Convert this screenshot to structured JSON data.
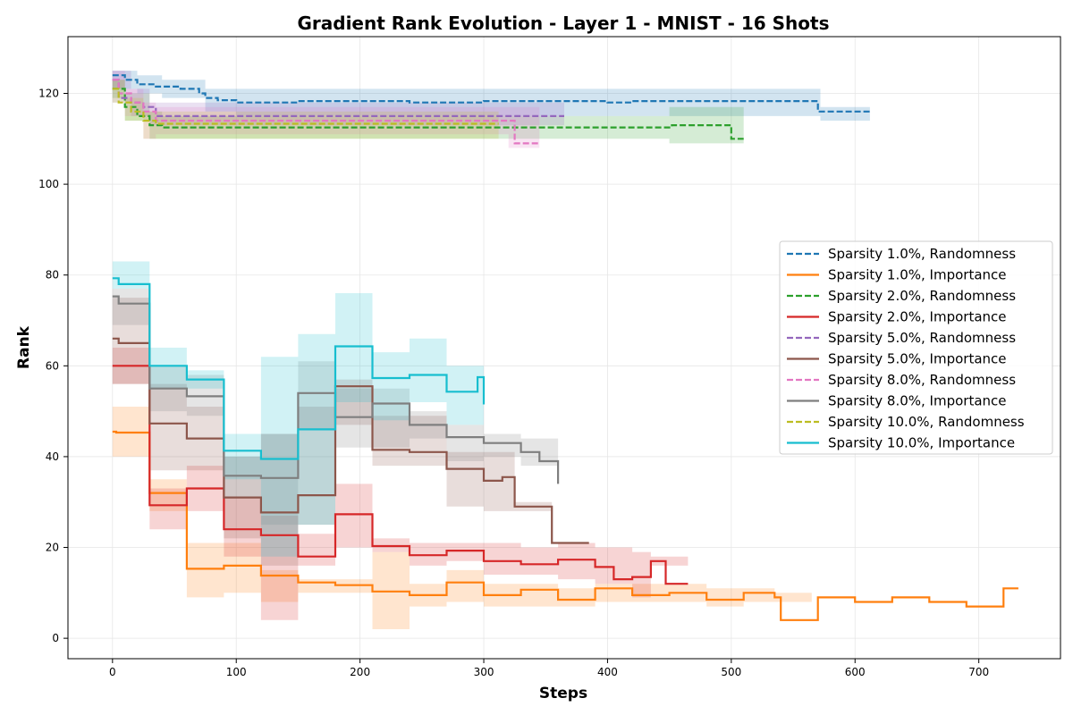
{
  "chart_data": {
    "type": "line",
    "title": "Gradient Rank Evolution - Layer 1 - MNIST - 16 Shots",
    "xlabel": "Steps",
    "ylabel": "Rank",
    "xlim": [
      -36,
      766
    ],
    "ylim": [
      -4.5,
      132.5
    ],
    "xticks": [
      0,
      100,
      200,
      300,
      400,
      500,
      600,
      700
    ],
    "yticks": [
      0,
      20,
      40,
      60,
      80,
      100,
      120
    ],
    "grid": true,
    "legend_position": "center-right",
    "series": [
      {
        "name": "Sparsity 1.0%, Randomness",
        "color": "#1f77b4",
        "dash": true,
        "steps": [
          [
            0,
            124
          ],
          [
            10,
            123
          ],
          [
            20,
            122
          ],
          [
            35,
            121.5
          ],
          [
            55,
            121
          ],
          [
            70,
            120
          ],
          [
            75,
            119
          ],
          [
            85,
            118.5
          ],
          [
            100,
            118
          ],
          [
            150,
            118.3
          ],
          [
            240,
            118
          ],
          [
            300,
            118.3
          ],
          [
            400,
            118
          ],
          [
            420,
            118.3
          ],
          [
            540,
            118.3
          ],
          [
            570,
            116
          ],
          [
            612,
            116
          ]
        ],
        "band": [
          [
            0,
            121,
            125
          ],
          [
            20,
            120,
            124
          ],
          [
            40,
            119,
            123
          ],
          [
            75,
            116,
            121
          ],
          [
            100,
            115,
            121
          ],
          [
            570,
            115,
            121
          ],
          [
            572,
            114,
            117
          ],
          [
            600,
            114,
            117
          ]
        ]
      },
      {
        "name": "Sparsity 1.0%, Importance",
        "color": "#ff7f0e",
        "dash": false,
        "steps": [
          [
            0,
            45.5
          ],
          [
            3,
            45.3
          ],
          [
            30,
            32
          ],
          [
            60,
            15.3
          ],
          [
            90,
            16
          ],
          [
            120,
            13.8
          ],
          [
            150,
            12.3
          ],
          [
            180,
            11.7
          ],
          [
            210,
            10.3
          ],
          [
            240,
            9.5
          ],
          [
            270,
            12.3
          ],
          [
            300,
            9.5
          ],
          [
            330,
            10.7
          ],
          [
            360,
            8.5
          ],
          [
            390,
            11
          ],
          [
            420,
            9.5
          ],
          [
            450,
            10
          ],
          [
            480,
            8.5
          ],
          [
            510,
            10
          ],
          [
            535,
            9
          ],
          [
            540,
            4
          ],
          [
            570,
            9
          ],
          [
            600,
            8
          ],
          [
            630,
            9
          ],
          [
            660,
            8
          ],
          [
            690,
            7
          ],
          [
            720,
            11
          ],
          [
            732,
            11
          ]
        ],
        "band": [
          [
            0,
            40,
            51
          ],
          [
            30,
            28,
            35
          ],
          [
            60,
            9,
            21
          ],
          [
            90,
            10,
            21
          ],
          [
            120,
            8,
            15
          ],
          [
            150,
            10,
            13
          ],
          [
            210,
            2,
            19
          ],
          [
            240,
            7,
            12
          ],
          [
            270,
            8,
            15
          ],
          [
            300,
            7,
            12
          ],
          [
            360,
            7,
            11
          ],
          [
            390,
            8,
            12
          ],
          [
            480,
            7,
            11
          ],
          [
            510,
            8,
            11
          ],
          [
            535,
            8,
            10
          ]
        ]
      },
      {
        "name": "Sparsity 2.0%, Randomness",
        "color": "#2ca02c",
        "dash": true,
        "steps": [
          [
            0,
            121
          ],
          [
            10,
            117
          ],
          [
            20,
            115
          ],
          [
            30,
            113
          ],
          [
            40,
            112.5
          ],
          [
            450,
            112.5
          ],
          [
            452,
            113
          ],
          [
            495,
            113
          ],
          [
            500,
            110
          ],
          [
            510,
            110
          ]
        ],
        "band": [
          [
            0,
            119,
            123
          ],
          [
            10,
            114,
            120
          ],
          [
            30,
            110,
            116
          ],
          [
            40,
            110,
            115
          ],
          [
            450,
            109,
            117
          ],
          [
            495,
            109,
            117
          ]
        ]
      },
      {
        "name": "Sparsity 2.0%, Importance",
        "color": "#d62728",
        "dash": false,
        "steps": [
          [
            0,
            60
          ],
          [
            30,
            29.3
          ],
          [
            60,
            33
          ],
          [
            90,
            24
          ],
          [
            120,
            22.7
          ],
          [
            150,
            18
          ],
          [
            180,
            27.3
          ],
          [
            210,
            20.3
          ],
          [
            240,
            18.3
          ],
          [
            270,
            19.3
          ],
          [
            300,
            17
          ],
          [
            330,
            16.3
          ],
          [
            360,
            17.3
          ],
          [
            390,
            15.7
          ],
          [
            405,
            13
          ],
          [
            420,
            13.5
          ],
          [
            435,
            17
          ],
          [
            447,
            12
          ],
          [
            465,
            12
          ]
        ],
        "band": [
          [
            0,
            56,
            64
          ],
          [
            30,
            24,
            33
          ],
          [
            60,
            28,
            38
          ],
          [
            90,
            18,
            31
          ],
          [
            120,
            4,
            27
          ],
          [
            150,
            16,
            23
          ],
          [
            180,
            20,
            34
          ],
          [
            210,
            19,
            22
          ],
          [
            240,
            16,
            21
          ],
          [
            270,
            17,
            21
          ],
          [
            300,
            14,
            21
          ],
          [
            330,
            14,
            20
          ],
          [
            360,
            13,
            21
          ],
          [
            390,
            12,
            20
          ],
          [
            420,
            9,
            19
          ],
          [
            435,
            16,
            18
          ]
        ]
      },
      {
        "name": "Sparsity 5.0%, Randomness",
        "color": "#9467bd",
        "dash": true,
        "steps": [
          [
            0,
            123
          ],
          [
            5,
            119
          ],
          [
            15,
            118
          ],
          [
            25,
            117
          ],
          [
            35,
            115
          ],
          [
            365,
            115
          ]
        ],
        "band": [
          [
            0,
            118,
            125
          ],
          [
            15,
            115,
            121
          ],
          [
            30,
            113,
            118
          ],
          [
            360,
            113,
            118
          ]
        ]
      },
      {
        "name": "Sparsity 5.0%, Importance",
        "color": "#8c564b",
        "dash": false,
        "steps": [
          [
            0,
            66
          ],
          [
            5,
            65
          ],
          [
            30,
            47.3
          ],
          [
            60,
            44
          ],
          [
            90,
            31
          ],
          [
            120,
            27.7
          ],
          [
            150,
            31.5
          ],
          [
            180,
            55.5
          ],
          [
            210,
            41.5
          ],
          [
            240,
            41
          ],
          [
            270,
            37.3
          ],
          [
            300,
            34.7
          ],
          [
            315,
            35.5
          ],
          [
            325,
            29
          ],
          [
            355,
            21
          ],
          [
            385,
            21
          ]
        ],
        "band": [
          [
            0,
            56,
            75
          ],
          [
            30,
            37,
            56
          ],
          [
            60,
            37,
            51
          ],
          [
            90,
            22,
            40
          ],
          [
            120,
            16,
            45
          ],
          [
            150,
            25,
            51
          ],
          [
            180,
            47,
            57
          ],
          [
            210,
            38,
            49
          ],
          [
            270,
            29,
            41
          ],
          [
            300,
            28,
            41
          ],
          [
            325,
            28,
            30
          ]
        ]
      },
      {
        "name": "Sparsity 8.0%, Randomness",
        "color": "#e377c2",
        "dash": true,
        "steps": [
          [
            0,
            123
          ],
          [
            5,
            120
          ],
          [
            15,
            118
          ],
          [
            25,
            116
          ],
          [
            35,
            114
          ],
          [
            322,
            114
          ],
          [
            325,
            109
          ],
          [
            345,
            109
          ]
        ],
        "band": [
          [
            0,
            121,
            125
          ],
          [
            10,
            115,
            121
          ],
          [
            25,
            110,
            118
          ],
          [
            35,
            111,
            117
          ],
          [
            320,
            108,
            117
          ]
        ]
      },
      {
        "name": "Sparsity 8.0%, Importance",
        "color": "#7f7f7f",
        "dash": false,
        "steps": [
          [
            0,
            75.3
          ],
          [
            5,
            73.7
          ],
          [
            30,
            55
          ],
          [
            60,
            53.3
          ],
          [
            90,
            35.8
          ],
          [
            120,
            35.3
          ],
          [
            150,
            54
          ],
          [
            180,
            48.7
          ],
          [
            210,
            51.7
          ],
          [
            240,
            47
          ],
          [
            270,
            44.3
          ],
          [
            300,
            43
          ],
          [
            330,
            41
          ],
          [
            345,
            39
          ],
          [
            360,
            34
          ]
        ],
        "band": [
          [
            0,
            69,
            77
          ],
          [
            30,
            50,
            60
          ],
          [
            60,
            49,
            58
          ],
          [
            90,
            31,
            40
          ],
          [
            120,
            25,
            45
          ],
          [
            150,
            46,
            61
          ],
          [
            180,
            42,
            55
          ],
          [
            240,
            44,
            50
          ],
          [
            270,
            39,
            47
          ],
          [
            300,
            40,
            45
          ],
          [
            330,
            38,
            44
          ]
        ]
      },
      {
        "name": "Sparsity 10.0%, Randomness",
        "color": "#bcbd22",
        "dash": true,
        "steps": [
          [
            0,
            121
          ],
          [
            5,
            118
          ],
          [
            15,
            116
          ],
          [
            25,
            114
          ],
          [
            35,
            113.3
          ],
          [
            312,
            113.3
          ]
        ],
        "band": [
          [
            0,
            118,
            123
          ],
          [
            10,
            114,
            119
          ],
          [
            25,
            110,
            116
          ],
          [
            35,
            110,
            116
          ],
          [
            310,
            110,
            116
          ]
        ]
      },
      {
        "name": "Sparsity 10.0%, Importance",
        "color": "#17becf",
        "dash": false,
        "steps": [
          [
            0,
            79.3
          ],
          [
            5,
            78
          ],
          [
            30,
            60
          ],
          [
            60,
            57
          ],
          [
            90,
            41.3
          ],
          [
            120,
            39.5
          ],
          [
            150,
            46
          ],
          [
            180,
            64.3
          ],
          [
            210,
            57.3
          ],
          [
            240,
            58
          ],
          [
            270,
            54.3
          ],
          [
            295,
            57.5
          ],
          [
            300,
            51.5
          ]
        ],
        "band": [
          [
            0,
            77,
            83
          ],
          [
            30,
            55,
            64
          ],
          [
            60,
            55,
            59
          ],
          [
            90,
            35,
            45
          ],
          [
            120,
            18,
            62
          ],
          [
            150,
            25,
            67
          ],
          [
            180,
            52,
            76
          ],
          [
            210,
            48,
            63
          ],
          [
            240,
            52,
            66
          ],
          [
            270,
            47,
            60
          ],
          [
            300,
            47,
            60
          ]
        ]
      }
    ]
  }
}
